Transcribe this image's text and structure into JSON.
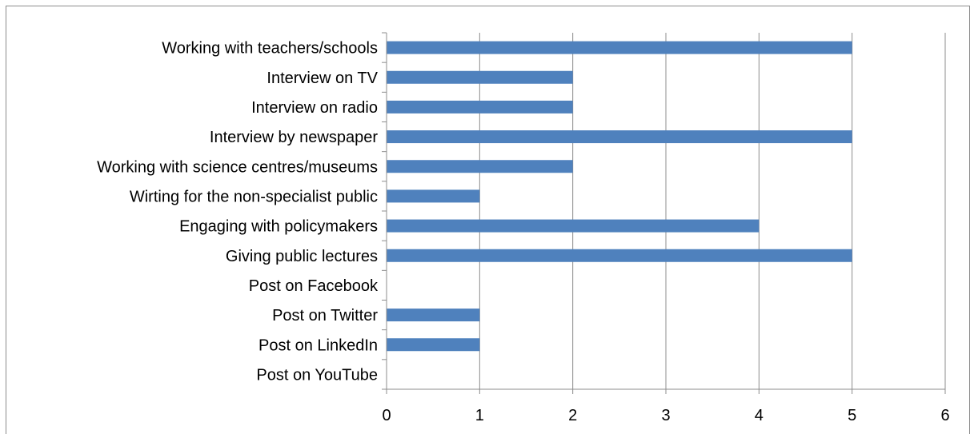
{
  "chart_data": {
    "type": "bar",
    "orientation": "horizontal",
    "categories": [
      "Working with teachers/schools",
      "Interview on TV",
      "Interview on radio",
      "Interview by newspaper",
      "Working with science centres/museums",
      "Wirting for the non-specialist public",
      "Engaging with policymakers",
      "Giving public lectures",
      "Post on Facebook",
      "Post on Twitter",
      "Post on LinkedIn",
      "Post on YouTube"
    ],
    "values": [
      5,
      2,
      2,
      5,
      2,
      1,
      4,
      5,
      0,
      1,
      1,
      0
    ],
    "xlim": [
      0,
      6
    ],
    "xticks": [
      "0",
      "1",
      "2",
      "3",
      "4",
      "5",
      "6"
    ],
    "title": "",
    "xlabel": "",
    "ylabel": "",
    "grid": "vertical",
    "legend": "none",
    "colors": {
      "bar": "#4f81bd",
      "grid": "#8c8c8c",
      "frame": "#8c8c8c"
    }
  }
}
